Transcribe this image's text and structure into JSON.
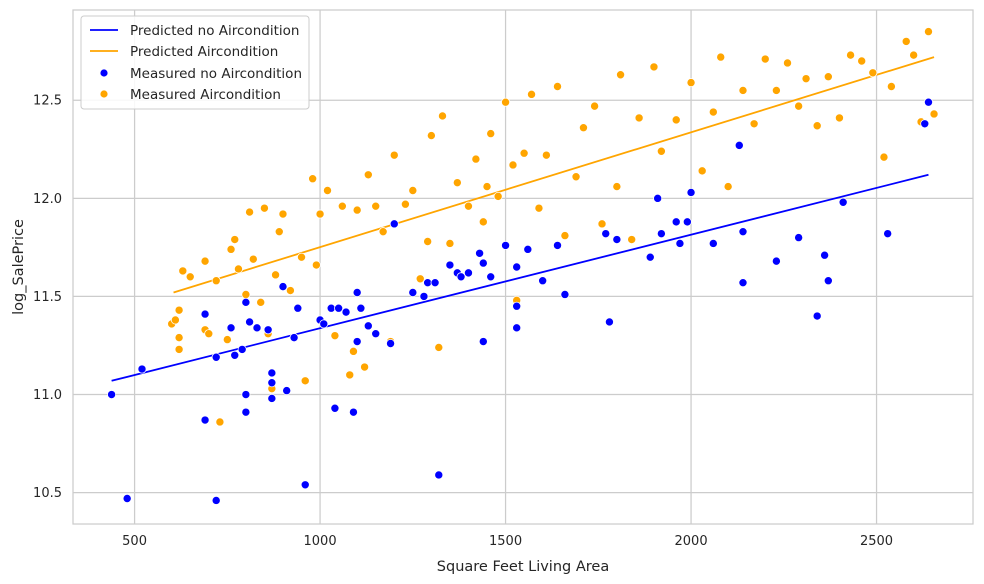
{
  "chart_data": {
    "type": "scatter",
    "title": "",
    "xlabel": "Square Feet Living Area",
    "ylabel": "log_SalePrice",
    "xlim": [
      334,
      2760
    ],
    "ylim": [
      10.34,
      12.96
    ],
    "xticks": [
      500,
      1000,
      1500,
      2000,
      2500
    ],
    "yticks": [
      10.5,
      11.0,
      11.5,
      12.0,
      12.5
    ],
    "xtick_labels": [
      "500",
      "1000",
      "1500",
      "2000",
      "2500"
    ],
    "ytick_labels": [
      "10.5",
      "11.0",
      "11.5",
      "12.0",
      "12.5"
    ],
    "grid": true,
    "legend_position": "top-left",
    "colors": {
      "no_aircondition": "#0000ff",
      "aircondition": "#ffa500"
    },
    "lines": [
      {
        "name": "Predicted no Aircondition",
        "color": "#0000ff",
        "x": [
          438,
          2640
        ],
        "y": [
          11.07,
          12.12
        ]
      },
      {
        "name": "Predicted Aircondition",
        "color": "#ffa500",
        "x": [
          605,
          2655
        ],
        "y": [
          11.52,
          12.72
        ]
      }
    ],
    "series": [
      {
        "name": "Measured no Aircondition",
        "color": "#0000ff",
        "points": [
          [
            438,
            11.0
          ],
          [
            480,
            10.47
          ],
          [
            520,
            11.13
          ],
          [
            690,
            11.41
          ],
          [
            690,
            10.87
          ],
          [
            720,
            10.46
          ],
          [
            720,
            11.19
          ],
          [
            760,
            11.34
          ],
          [
            770,
            11.2
          ],
          [
            790,
            11.23
          ],
          [
            800,
            11.47
          ],
          [
            800,
            11.0
          ],
          [
            800,
            10.91
          ],
          [
            810,
            11.37
          ],
          [
            830,
            11.34
          ],
          [
            860,
            11.33
          ],
          [
            870,
            11.11
          ],
          [
            870,
            11.06
          ],
          [
            870,
            10.98
          ],
          [
            900,
            11.55
          ],
          [
            910,
            11.02
          ],
          [
            930,
            11.29
          ],
          [
            940,
            11.44
          ],
          [
            960,
            10.54
          ],
          [
            1000,
            11.38
          ],
          [
            1010,
            11.36
          ],
          [
            1030,
            11.44
          ],
          [
            1040,
            10.93
          ],
          [
            1050,
            11.44
          ],
          [
            1070,
            11.42
          ],
          [
            1090,
            10.91
          ],
          [
            1100,
            11.27
          ],
          [
            1100,
            11.52
          ],
          [
            1110,
            11.44
          ],
          [
            1130,
            11.35
          ],
          [
            1150,
            11.31
          ],
          [
            1190,
            11.26
          ],
          [
            1200,
            11.87
          ],
          [
            1250,
            11.52
          ],
          [
            1280,
            11.5
          ],
          [
            1290,
            11.57
          ],
          [
            1310,
            11.57
          ],
          [
            1320,
            10.59
          ],
          [
            1350,
            11.66
          ],
          [
            1370,
            11.62
          ],
          [
            1380,
            11.6
          ],
          [
            1400,
            11.62
          ],
          [
            1430,
            11.72
          ],
          [
            1440,
            11.67
          ],
          [
            1440,
            11.27
          ],
          [
            1460,
            11.6
          ],
          [
            1500,
            11.76
          ],
          [
            1530,
            11.65
          ],
          [
            1530,
            11.45
          ],
          [
            1530,
            11.34
          ],
          [
            1560,
            11.74
          ],
          [
            1600,
            11.58
          ],
          [
            1640,
            11.76
          ],
          [
            1660,
            11.51
          ],
          [
            1770,
            11.82
          ],
          [
            1780,
            11.37
          ],
          [
            1800,
            11.79
          ],
          [
            1890,
            11.7
          ],
          [
            1910,
            12.0
          ],
          [
            1920,
            11.82
          ],
          [
            1960,
            11.88
          ],
          [
            1970,
            11.77
          ],
          [
            1990,
            11.88
          ],
          [
            2000,
            12.03
          ],
          [
            2060,
            11.77
          ],
          [
            2130,
            12.27
          ],
          [
            2140,
            11.57
          ],
          [
            2140,
            11.83
          ],
          [
            2230,
            11.68
          ],
          [
            2290,
            11.8
          ],
          [
            2340,
            11.4
          ],
          [
            2360,
            11.71
          ],
          [
            2370,
            11.58
          ],
          [
            2410,
            11.98
          ],
          [
            2530,
            11.82
          ],
          [
            2630,
            12.38
          ],
          [
            2640,
            12.49
          ]
        ]
      },
      {
        "name": "Measured Aircondition",
        "color": "#ffa500",
        "points": [
          [
            600,
            11.36
          ],
          [
            610,
            11.38
          ],
          [
            620,
            11.43
          ],
          [
            620,
            11.29
          ],
          [
            620,
            11.23
          ],
          [
            630,
            11.63
          ],
          [
            650,
            11.6
          ],
          [
            690,
            11.33
          ],
          [
            690,
            11.68
          ],
          [
            700,
            11.31
          ],
          [
            720,
            11.58
          ],
          [
            730,
            10.86
          ],
          [
            750,
            11.28
          ],
          [
            760,
            11.74
          ],
          [
            770,
            11.79
          ],
          [
            780,
            11.64
          ],
          [
            800,
            11.51
          ],
          [
            810,
            11.93
          ],
          [
            820,
            11.69
          ],
          [
            840,
            11.47
          ],
          [
            850,
            11.95
          ],
          [
            860,
            11.31
          ],
          [
            870,
            11.03
          ],
          [
            880,
            11.61
          ],
          [
            890,
            11.83
          ],
          [
            900,
            11.92
          ],
          [
            920,
            11.53
          ],
          [
            930,
            11.29
          ],
          [
            950,
            11.7
          ],
          [
            960,
            11.07
          ],
          [
            980,
            12.1
          ],
          [
            990,
            11.66
          ],
          [
            1000,
            11.92
          ],
          [
            1020,
            12.04
          ],
          [
            1040,
            11.3
          ],
          [
            1060,
            11.96
          ],
          [
            1080,
            11.1
          ],
          [
            1090,
            11.22
          ],
          [
            1100,
            11.94
          ],
          [
            1120,
            11.14
          ],
          [
            1130,
            12.12
          ],
          [
            1150,
            11.96
          ],
          [
            1170,
            11.83
          ],
          [
            1190,
            11.27
          ],
          [
            1200,
            12.22
          ],
          [
            1230,
            11.97
          ],
          [
            1250,
            12.04
          ],
          [
            1270,
            11.59
          ],
          [
            1290,
            11.78
          ],
          [
            1300,
            12.32
          ],
          [
            1320,
            11.24
          ],
          [
            1330,
            12.42
          ],
          [
            1350,
            11.77
          ],
          [
            1370,
            12.08
          ],
          [
            1400,
            11.96
          ],
          [
            1420,
            12.2
          ],
          [
            1440,
            11.88
          ],
          [
            1450,
            12.06
          ],
          [
            1460,
            12.33
          ],
          [
            1480,
            12.01
          ],
          [
            1500,
            12.49
          ],
          [
            1520,
            12.17
          ],
          [
            1530,
            11.48
          ],
          [
            1550,
            12.23
          ],
          [
            1570,
            12.53
          ],
          [
            1590,
            11.95
          ],
          [
            1610,
            12.22
          ],
          [
            1640,
            12.57
          ],
          [
            1660,
            11.81
          ],
          [
            1690,
            12.11
          ],
          [
            1710,
            12.36
          ],
          [
            1740,
            12.47
          ],
          [
            1760,
            11.87
          ],
          [
            1800,
            12.06
          ],
          [
            1810,
            12.63
          ],
          [
            1840,
            11.79
          ],
          [
            1860,
            12.41
          ],
          [
            1900,
            12.67
          ],
          [
            1920,
            12.24
          ],
          [
            1960,
            12.4
          ],
          [
            2000,
            12.59
          ],
          [
            2030,
            12.14
          ],
          [
            2060,
            12.44
          ],
          [
            2080,
            12.72
          ],
          [
            2100,
            12.06
          ],
          [
            2140,
            12.55
          ],
          [
            2170,
            12.38
          ],
          [
            2200,
            12.71
          ],
          [
            2230,
            12.55
          ],
          [
            2260,
            12.69
          ],
          [
            2290,
            12.47
          ],
          [
            2310,
            12.61
          ],
          [
            2340,
            12.37
          ],
          [
            2370,
            12.62
          ],
          [
            2400,
            12.41
          ],
          [
            2430,
            12.73
          ],
          [
            2460,
            12.7
          ],
          [
            2490,
            12.64
          ],
          [
            2520,
            12.21
          ],
          [
            2540,
            12.57
          ],
          [
            2580,
            12.8
          ],
          [
            2600,
            12.73
          ],
          [
            2620,
            12.39
          ],
          [
            2640,
            12.85
          ],
          [
            2655,
            12.43
          ]
        ]
      }
    ]
  }
}
